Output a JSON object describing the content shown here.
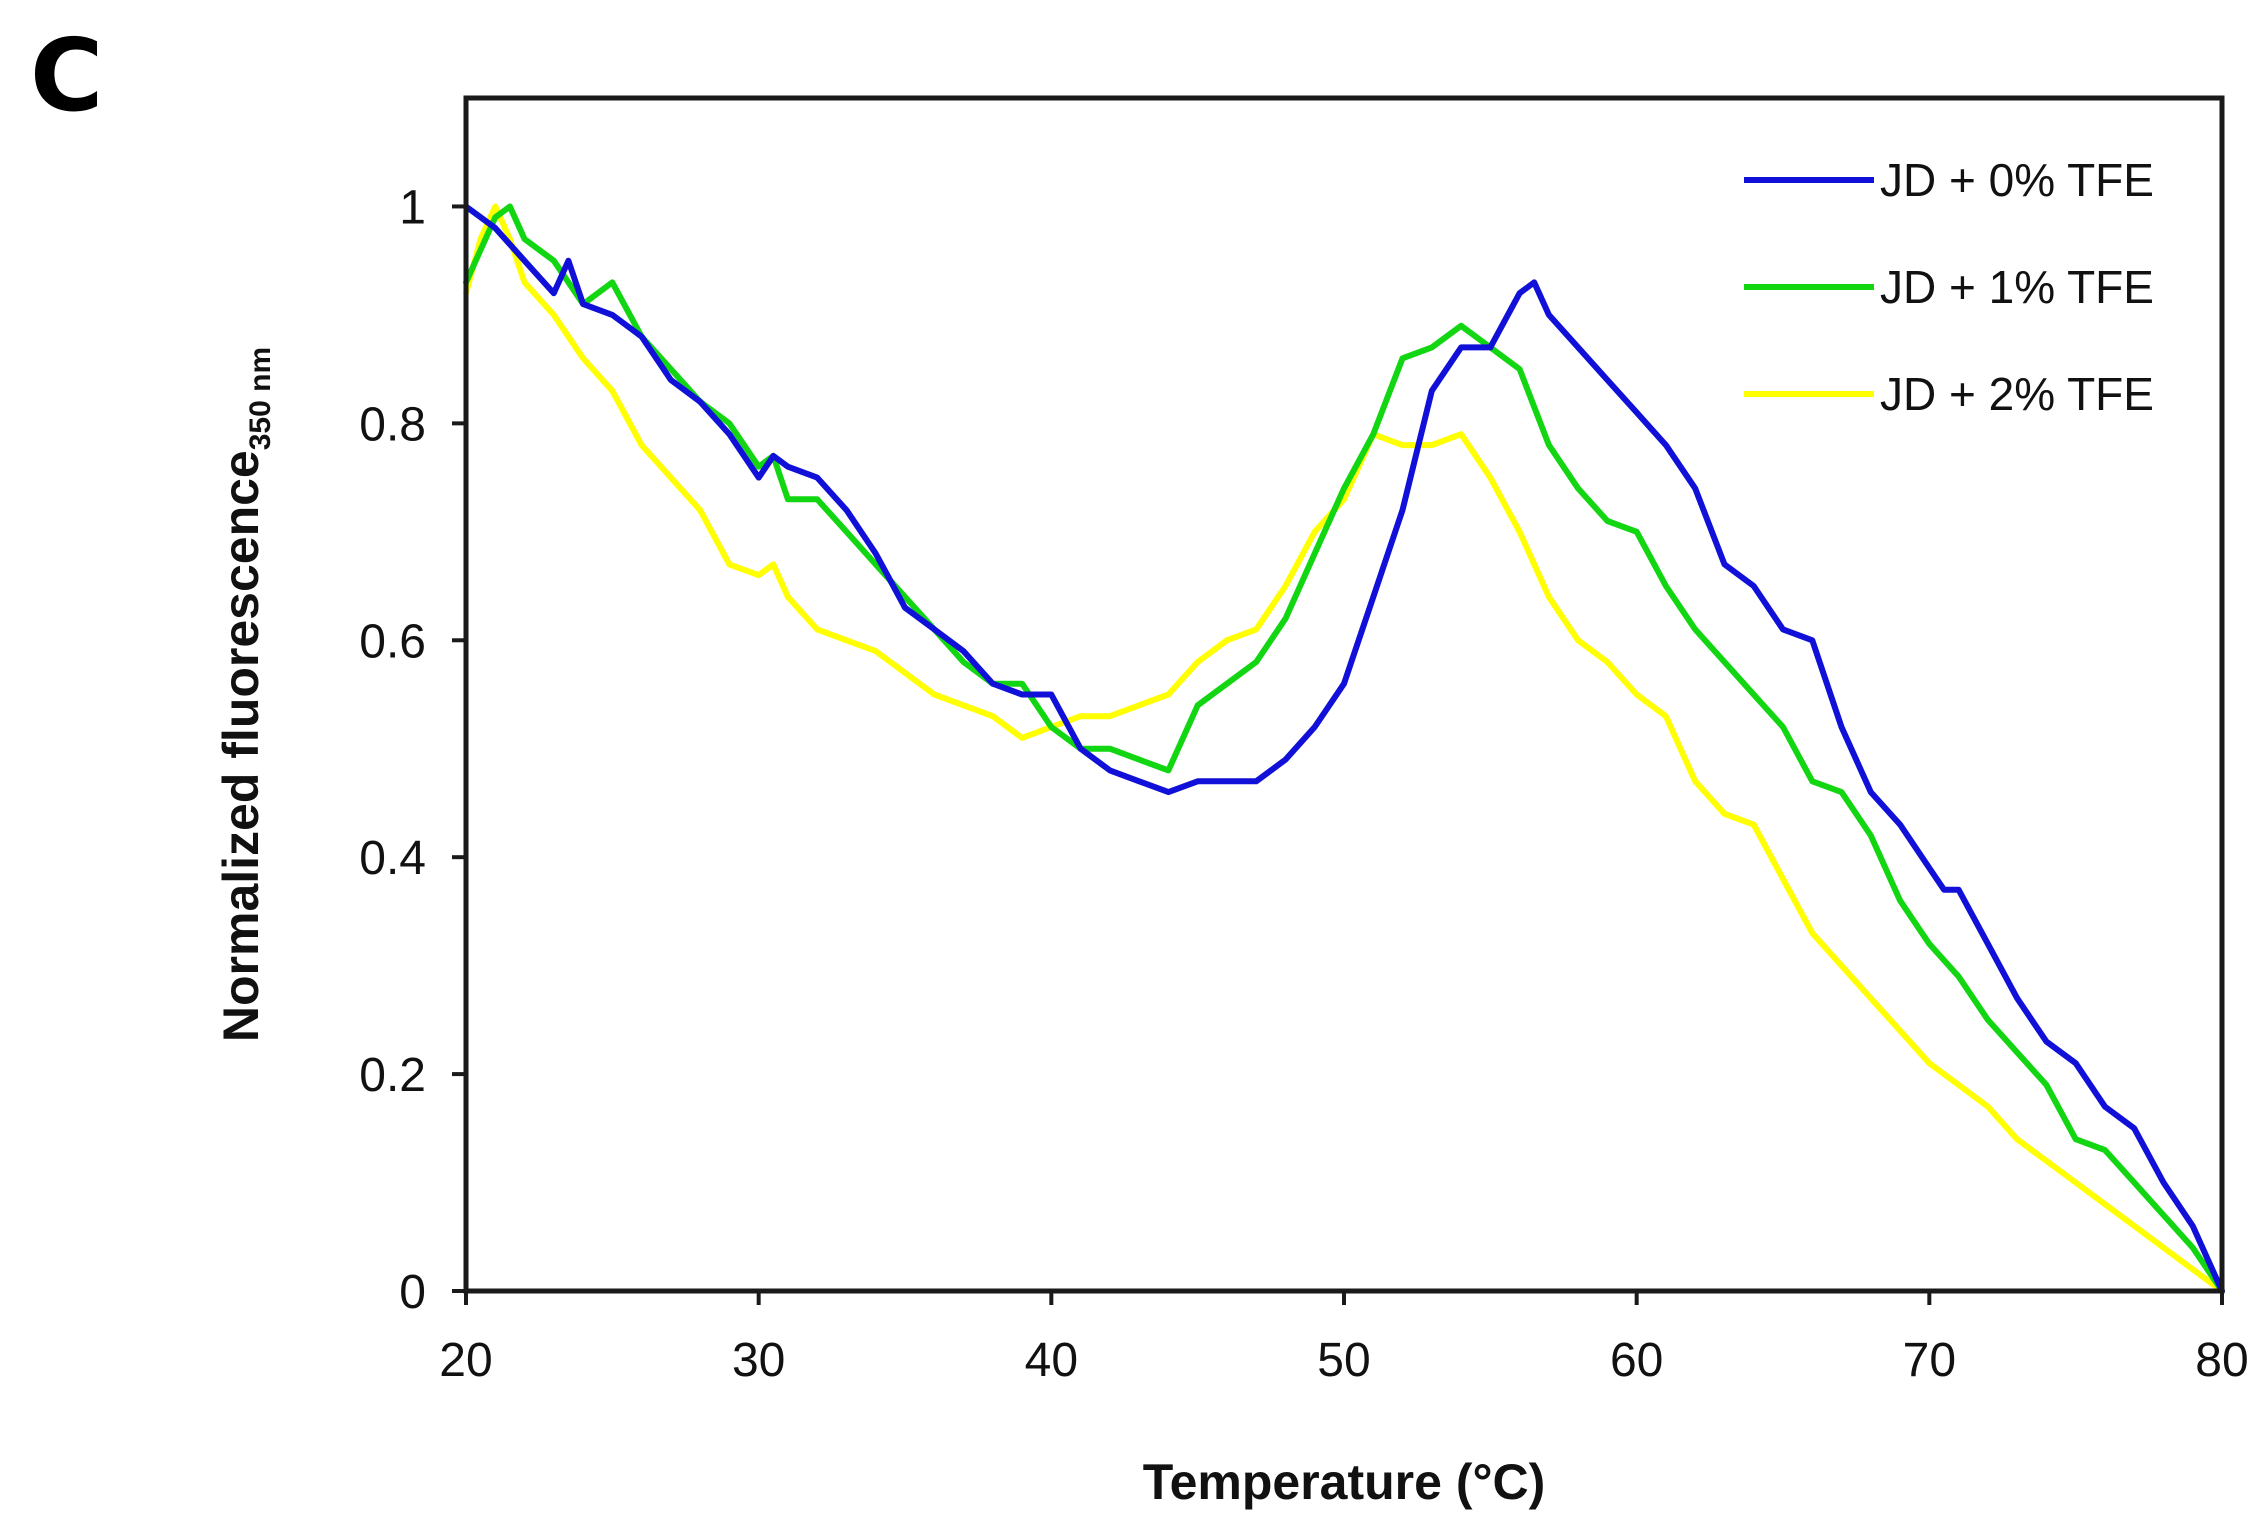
{
  "panel_label": "C",
  "colors": {
    "axis": "#1a1a1a",
    "series_0": "#1010d8",
    "series_1": "#12d612",
    "series_2": "#ffff00"
  },
  "chart_data": {
    "type": "line",
    "title": "",
    "xlabel": "Temperature (°C)",
    "ylabel_main": "Normalized  fluorescence",
    "ylabel_sub": "350 nm",
    "xlim": [
      20,
      80
    ],
    "ylim": [
      0,
      1.1
    ],
    "xticks": [
      20,
      30,
      40,
      50,
      60,
      70,
      80
    ],
    "xtick_labels": [
      "20",
      "30",
      "40",
      "50",
      "60",
      "70",
      "80"
    ],
    "yticks": [
      0,
      0.2,
      0.4,
      0.6,
      0.8,
      1
    ],
    "ytick_labels": [
      "0",
      "0.2",
      "0.4",
      "0.6",
      "0.8",
      "1"
    ],
    "grid": false,
    "legend_position": "top-right",
    "series": [
      {
        "name": "JD + 0% TFE",
        "x": [
          20,
          21,
          22,
          23,
          23.5,
          24,
          25,
          26,
          27,
          28,
          29,
          30,
          30.5,
          31,
          32,
          33,
          34,
          35,
          36,
          37,
          38,
          39,
          40,
          41,
          42,
          43,
          44,
          45,
          46,
          47,
          48,
          49,
          50,
          51,
          52,
          53,
          54,
          55,
          56,
          56.5,
          57,
          58,
          59,
          60,
          61,
          62,
          63,
          64,
          65,
          66,
          67,
          68,
          69,
          70,
          70.5,
          71,
          72,
          73,
          74,
          75,
          76,
          77,
          78,
          79,
          80
        ],
        "y": [
          1.0,
          0.98,
          0.95,
          0.92,
          0.95,
          0.91,
          0.9,
          0.88,
          0.84,
          0.82,
          0.79,
          0.75,
          0.77,
          0.76,
          0.75,
          0.72,
          0.68,
          0.63,
          0.61,
          0.59,
          0.56,
          0.55,
          0.55,
          0.5,
          0.48,
          0.47,
          0.46,
          0.47,
          0.47,
          0.47,
          0.49,
          0.52,
          0.56,
          0.64,
          0.72,
          0.83,
          0.87,
          0.87,
          0.92,
          0.93,
          0.9,
          0.87,
          0.84,
          0.81,
          0.78,
          0.74,
          0.67,
          0.65,
          0.61,
          0.6,
          0.52,
          0.46,
          0.43,
          0.39,
          0.37,
          0.37,
          0.32,
          0.27,
          0.23,
          0.21,
          0.17,
          0.15,
          0.1,
          0.06,
          0.0
        ]
      },
      {
        "name": "JD + 1% TFE",
        "x": [
          20,
          20.5,
          21,
          21.5,
          22,
          23,
          24,
          25,
          26,
          27,
          28,
          29,
          30,
          30.5,
          31,
          32,
          33,
          34,
          35,
          36,
          37,
          38,
          39,
          40,
          41,
          42,
          43,
          44,
          45,
          46,
          47,
          48,
          49,
          50,
          51,
          52,
          53,
          54,
          55,
          56,
          57,
          58,
          59,
          60,
          61,
          62,
          63,
          64,
          65,
          66,
          67,
          68,
          69,
          70,
          71,
          72,
          73,
          74,
          75,
          76,
          77,
          78,
          79,
          80
        ],
        "y": [
          0.93,
          0.96,
          0.99,
          1.0,
          0.97,
          0.95,
          0.91,
          0.93,
          0.88,
          0.85,
          0.82,
          0.8,
          0.76,
          0.77,
          0.73,
          0.73,
          0.7,
          0.67,
          0.64,
          0.61,
          0.58,
          0.56,
          0.56,
          0.52,
          0.5,
          0.5,
          0.49,
          0.48,
          0.54,
          0.56,
          0.58,
          0.62,
          0.68,
          0.74,
          0.79,
          0.86,
          0.87,
          0.89,
          0.87,
          0.85,
          0.78,
          0.74,
          0.71,
          0.7,
          0.65,
          0.61,
          0.58,
          0.55,
          0.52,
          0.47,
          0.46,
          0.42,
          0.36,
          0.32,
          0.29,
          0.25,
          0.22,
          0.19,
          0.14,
          0.13,
          0.1,
          0.07,
          0.04,
          0.0
        ]
      },
      {
        "name": "JD + 2% TFE",
        "x": [
          20,
          20.5,
          21,
          21.5,
          22,
          23,
          24,
          25,
          26,
          27,
          28,
          29,
          30,
          30.5,
          31,
          32,
          33,
          34,
          35,
          36,
          37,
          38,
          39,
          40,
          41,
          42,
          43,
          44,
          45,
          46,
          47,
          48,
          49,
          50,
          51,
          52,
          53,
          54,
          55,
          56,
          57,
          58,
          59,
          60,
          61,
          62,
          63,
          64,
          65,
          66,
          67,
          68,
          69,
          70,
          71,
          72,
          73,
          74,
          75,
          76,
          77,
          78,
          79,
          80
        ],
        "y": [
          0.92,
          0.97,
          1.0,
          0.97,
          0.93,
          0.9,
          0.86,
          0.83,
          0.78,
          0.75,
          0.72,
          0.67,
          0.66,
          0.67,
          0.64,
          0.61,
          0.6,
          0.59,
          0.57,
          0.55,
          0.54,
          0.53,
          0.51,
          0.52,
          0.53,
          0.53,
          0.54,
          0.55,
          0.58,
          0.6,
          0.61,
          0.65,
          0.7,
          0.73,
          0.79,
          0.78,
          0.78,
          0.79,
          0.75,
          0.7,
          0.64,
          0.6,
          0.58,
          0.55,
          0.53,
          0.47,
          0.44,
          0.43,
          0.38,
          0.33,
          0.3,
          0.27,
          0.24,
          0.21,
          0.19,
          0.17,
          0.14,
          0.12,
          0.1,
          0.08,
          0.06,
          0.04,
          0.02,
          0.0
        ]
      }
    ]
  }
}
